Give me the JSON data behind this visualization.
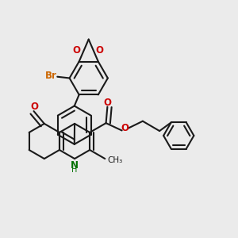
{
  "bg_color": "#ebebeb",
  "bond_color": "#1a1a1a",
  "o_color": "#cc0000",
  "n_color": "#007000",
  "br_color": "#cc6600",
  "lw": 1.5,
  "dbo": 0.018,
  "figsize": [
    3.0,
    3.0
  ],
  "dpi": 100,
  "xlim": [
    0.0,
    1.0
  ],
  "ylim": [
    0.05,
    1.05
  ]
}
